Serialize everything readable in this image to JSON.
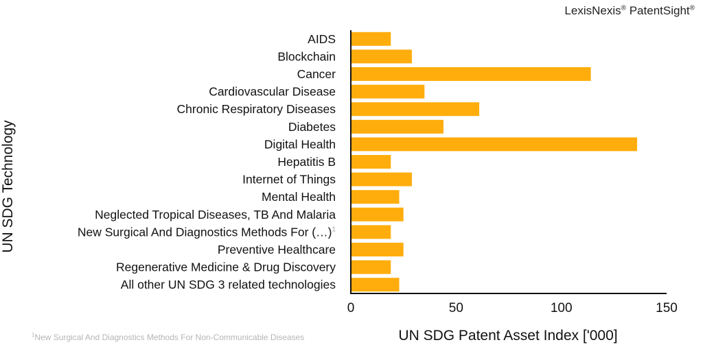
{
  "brand": {
    "name1": "LexisNexis",
    "reg": "®",
    "name2": "PatentSight"
  },
  "chart_data": {
    "type": "bar",
    "orientation": "horizontal",
    "title": "",
    "xlabel": "UN SDG Patent Asset Index ['000]",
    "ylabel": "UN SDG Technology",
    "xlim": [
      0,
      150
    ],
    "xticks": [
      0,
      50,
      100,
      150
    ],
    "grid": false,
    "bar_color": "#ffad0d",
    "categories": [
      "AIDS",
      "Blockchain",
      "Cancer",
      "Cardiovascular Disease",
      "Chronic Respiratory Diseases",
      "Diabetes",
      "Digital Health",
      "Hepatitis B",
      "Internet of Things",
      "Mental Health",
      "Neglected Tropical Diseases, TB And Malaria",
      "New Surgical And Diagnostics Methods For (…)",
      "Preventive Healthcare",
      "Regenerative Medicine & Drug Discovery",
      "All other UN SDG 3 related technologies"
    ],
    "category_marks": [
      "",
      "",
      "",
      "",
      "",
      "",
      "",
      "",
      "",
      "",
      "",
      "1",
      "",
      "",
      ""
    ],
    "values": [
      19,
      29,
      114,
      35,
      61,
      44,
      136,
      19,
      29,
      23,
      25,
      19,
      25,
      19,
      23
    ]
  },
  "footnote": {
    "mark": "1",
    "text": "New Surgical And Diagnostics Methods For Non-Communicable Diseases"
  }
}
